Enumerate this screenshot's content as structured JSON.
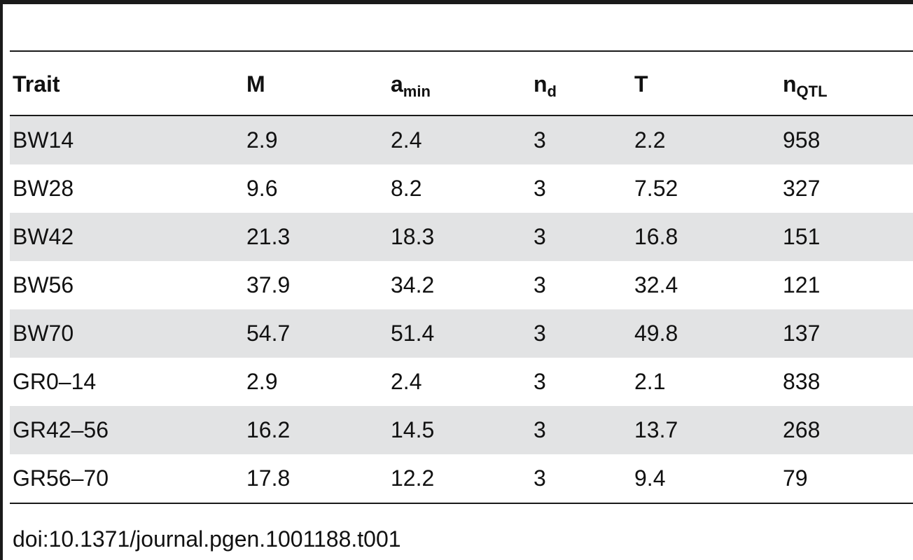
{
  "table": {
    "headers": [
      {
        "main": "Trait",
        "sub": ""
      },
      {
        "main": "M",
        "sub": ""
      },
      {
        "main": "a",
        "sub": "min"
      },
      {
        "main": "n",
        "sub": "d"
      },
      {
        "main": "T",
        "sub": ""
      },
      {
        "main": "n",
        "sub": "QTL"
      }
    ],
    "rows": [
      [
        "BW14",
        "2.9",
        "2.4",
        "3",
        "2.2",
        "958"
      ],
      [
        "BW28",
        "9.6",
        "8.2",
        "3",
        "7.52",
        "327"
      ],
      [
        "BW42",
        "21.3",
        "18.3",
        "3",
        "16.8",
        "151"
      ],
      [
        "BW56",
        "37.9",
        "34.2",
        "3",
        "32.4",
        "121"
      ],
      [
        "BW70",
        "54.7",
        "51.4",
        "3",
        "49.8",
        "137"
      ],
      [
        "GR0–14",
        "2.9",
        "2.4",
        "3",
        "2.1",
        "838"
      ],
      [
        "GR42–56",
        "16.2",
        "14.5",
        "3",
        "13.7",
        "268"
      ],
      [
        "GR56–70",
        "17.8",
        "12.2",
        "3",
        "9.4",
        "79"
      ]
    ]
  },
  "footer": {
    "doi": "doi:10.1371/journal.pgen.1001188.t001"
  }
}
